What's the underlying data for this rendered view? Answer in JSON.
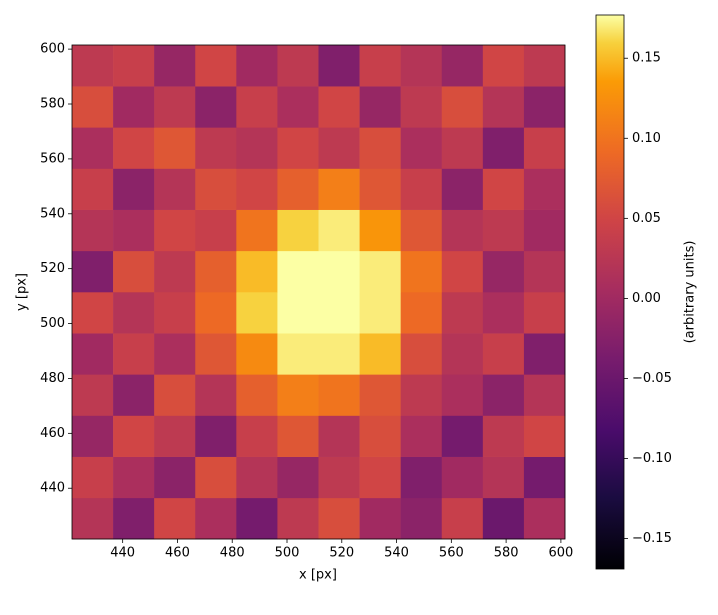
{
  "chart_data": {
    "type": "heatmap",
    "xlabel": "x [px]",
    "ylabel": "y [px]",
    "colorbar_label": "(arbitrary units)",
    "colormap": "inferno",
    "x": [
      429,
      444,
      459,
      474,
      489,
      504,
      519,
      534,
      549,
      564,
      579,
      594
    ],
    "y": [
      429,
      444,
      459,
      474,
      489,
      504,
      519,
      534,
      549,
      564,
      579,
      594
    ],
    "z": [
      [
        0.02,
        -0.03,
        0.05,
        0.01,
        -0.04,
        0.03,
        0.06,
        0.0,
        -0.02,
        0.04,
        -0.05,
        0.01
      ],
      [
        0.04,
        0.01,
        -0.02,
        0.06,
        0.02,
        -0.01,
        0.03,
        0.05,
        -0.03,
        0.0,
        0.02,
        -0.04
      ],
      [
        -0.01,
        0.05,
        0.03,
        -0.03,
        0.04,
        0.07,
        0.02,
        0.06,
        0.01,
        -0.04,
        0.03,
        0.05
      ],
      [
        0.03,
        -0.02,
        0.06,
        0.02,
        0.08,
        0.11,
        0.1,
        0.07,
        0.03,
        0.01,
        -0.02,
        0.02
      ],
      [
        0.0,
        0.04,
        0.01,
        0.07,
        0.12,
        0.17,
        0.17,
        0.15,
        0.06,
        0.02,
        0.04,
        -0.03
      ],
      [
        0.05,
        0.02,
        0.04,
        0.09,
        0.16,
        0.18,
        0.18,
        0.17,
        0.09,
        0.03,
        0.01,
        0.04
      ],
      [
        -0.03,
        0.06,
        0.03,
        0.08,
        0.15,
        0.18,
        0.18,
        0.17,
        0.1,
        0.05,
        -0.01,
        0.02
      ],
      [
        0.02,
        0.01,
        0.05,
        0.04,
        0.1,
        0.16,
        0.17,
        0.13,
        0.07,
        0.02,
        0.03,
        0.0
      ],
      [
        0.04,
        -0.02,
        0.02,
        0.06,
        0.05,
        0.08,
        0.11,
        0.07,
        0.04,
        -0.02,
        0.05,
        0.01
      ],
      [
        0.01,
        0.05,
        0.07,
        0.03,
        0.02,
        0.05,
        0.03,
        0.06,
        0.01,
        0.03,
        -0.03,
        0.04
      ],
      [
        0.06,
        0.0,
        0.03,
        -0.02,
        0.04,
        0.01,
        0.05,
        -0.01,
        0.03,
        0.06,
        0.02,
        -0.02
      ],
      [
        0.03,
        0.04,
        -0.01,
        0.05,
        0.0,
        0.03,
        -0.03,
        0.04,
        0.02,
        -0.01,
        0.05,
        0.03
      ]
    ],
    "xlim": [
      421.5,
      601.5
    ],
    "ylim": [
      421.5,
      601.5
    ],
    "xticks": [
      440,
      460,
      480,
      500,
      520,
      540,
      560,
      580,
      600
    ],
    "yticks": [
      440,
      460,
      480,
      500,
      520,
      540,
      560,
      580,
      600
    ],
    "clim": [
      -0.169,
      0.177
    ],
    "cticks": [
      {
        "value": -0.15,
        "label": "−0.15"
      },
      {
        "value": -0.1,
        "label": "−0.10"
      },
      {
        "value": -0.05,
        "label": "−0.05"
      },
      {
        "value": 0,
        "label": "0.00"
      },
      0.05,
      {
        "value": 0.1,
        "label": "0.10"
      },
      0.15
    ]
  }
}
